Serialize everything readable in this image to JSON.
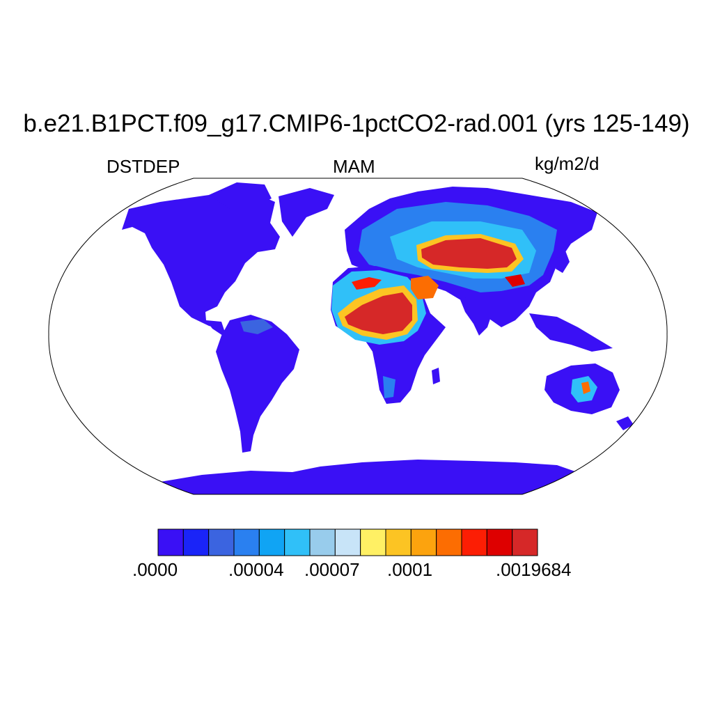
{
  "title": "b.e21.B1PCT.f09_g17.CMIP6-1pctCO2-rad.001 (yrs 125-149)",
  "left_label": "DSTDEP",
  "center_label": "MAM",
  "right_label": "kg/m2/d",
  "colorbar": {
    "colors": [
      "#3a10f5",
      "#1a24f8",
      "#3b64e0",
      "#2a80f0",
      "#10a4f4",
      "#30c0f8",
      "#98ccec",
      "#c8e4f8",
      "#fff064",
      "#fcc423",
      "#fca30e",
      "#fc6d02",
      "#fc1e04",
      "#de0000",
      "#d62828"
    ],
    "labels": [
      ".0000",
      ".00004",
      ".00007",
      ".0001",
      ".0019684"
    ]
  },
  "colors": {
    "land_low": "#3a10f5",
    "ocean": "#ffffff",
    "outline": "#000000"
  }
}
